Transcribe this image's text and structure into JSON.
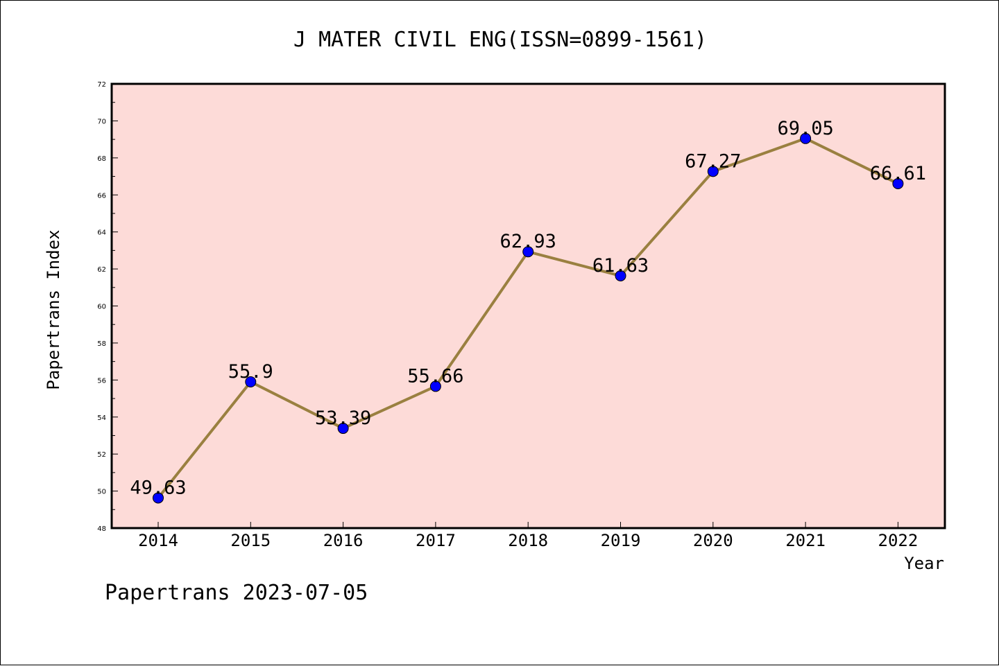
{
  "chart_data": {
    "type": "line",
    "title": "J MATER CIVIL ENG(ISSN=0899-1561)",
    "xlabel": "Year",
    "ylabel": "Papertrans Index",
    "categories": [
      "2014",
      "2015",
      "2016",
      "2017",
      "2018",
      "2019",
      "2020",
      "2021",
      "2022"
    ],
    "values": [
      49.63,
      55.9,
      53.39,
      55.66,
      62.93,
      61.63,
      67.27,
      69.05,
      66.61
    ],
    "value_labels": [
      "49.63",
      "55.9",
      "53.39",
      "55.66",
      "62.93",
      "61.63",
      "67.27",
      "69.05",
      "66.61"
    ],
    "ylim": [
      48,
      72
    ],
    "yticks": [
      48,
      50,
      52,
      54,
      56,
      58,
      60,
      62,
      64,
      66,
      68,
      70,
      72
    ],
    "grid": false,
    "line_color": "#9a8040",
    "marker_color": "#0000ff",
    "plot_background": "#fddbd8",
    "footer": "Papertrans 2023-07-05"
  }
}
